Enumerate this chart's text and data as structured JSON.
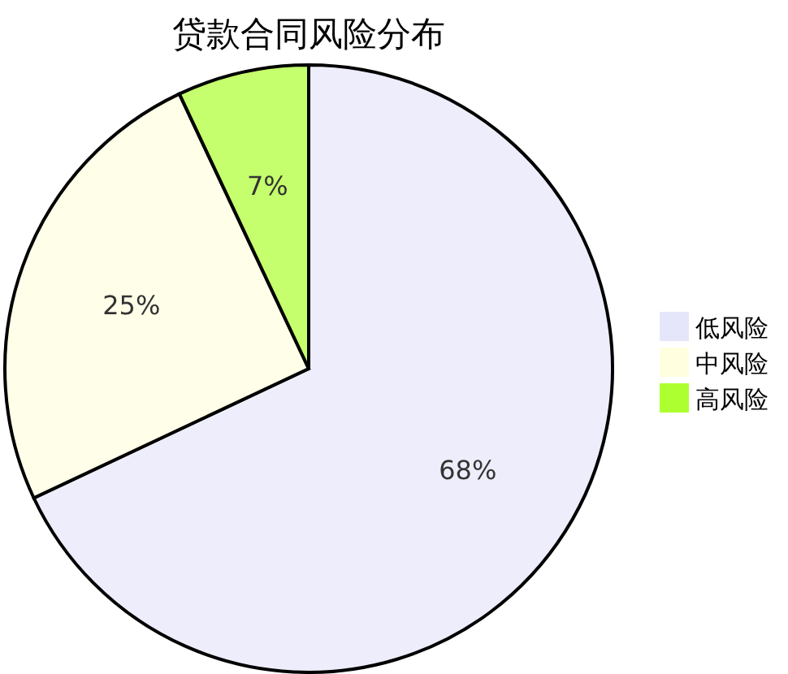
{
  "chart_data": {
    "type": "pie",
    "title": "贷款合同风险分布",
    "categories": [
      "低风险",
      "中风险",
      "高风险"
    ],
    "values": [
      68,
      25,
      7
    ],
    "colors": [
      "#e6e6fa",
      "#ffffe0",
      "#adff2f"
    ],
    "value_labels": [
      "68%",
      "25%",
      "7%"
    ],
    "legend": "right"
  }
}
